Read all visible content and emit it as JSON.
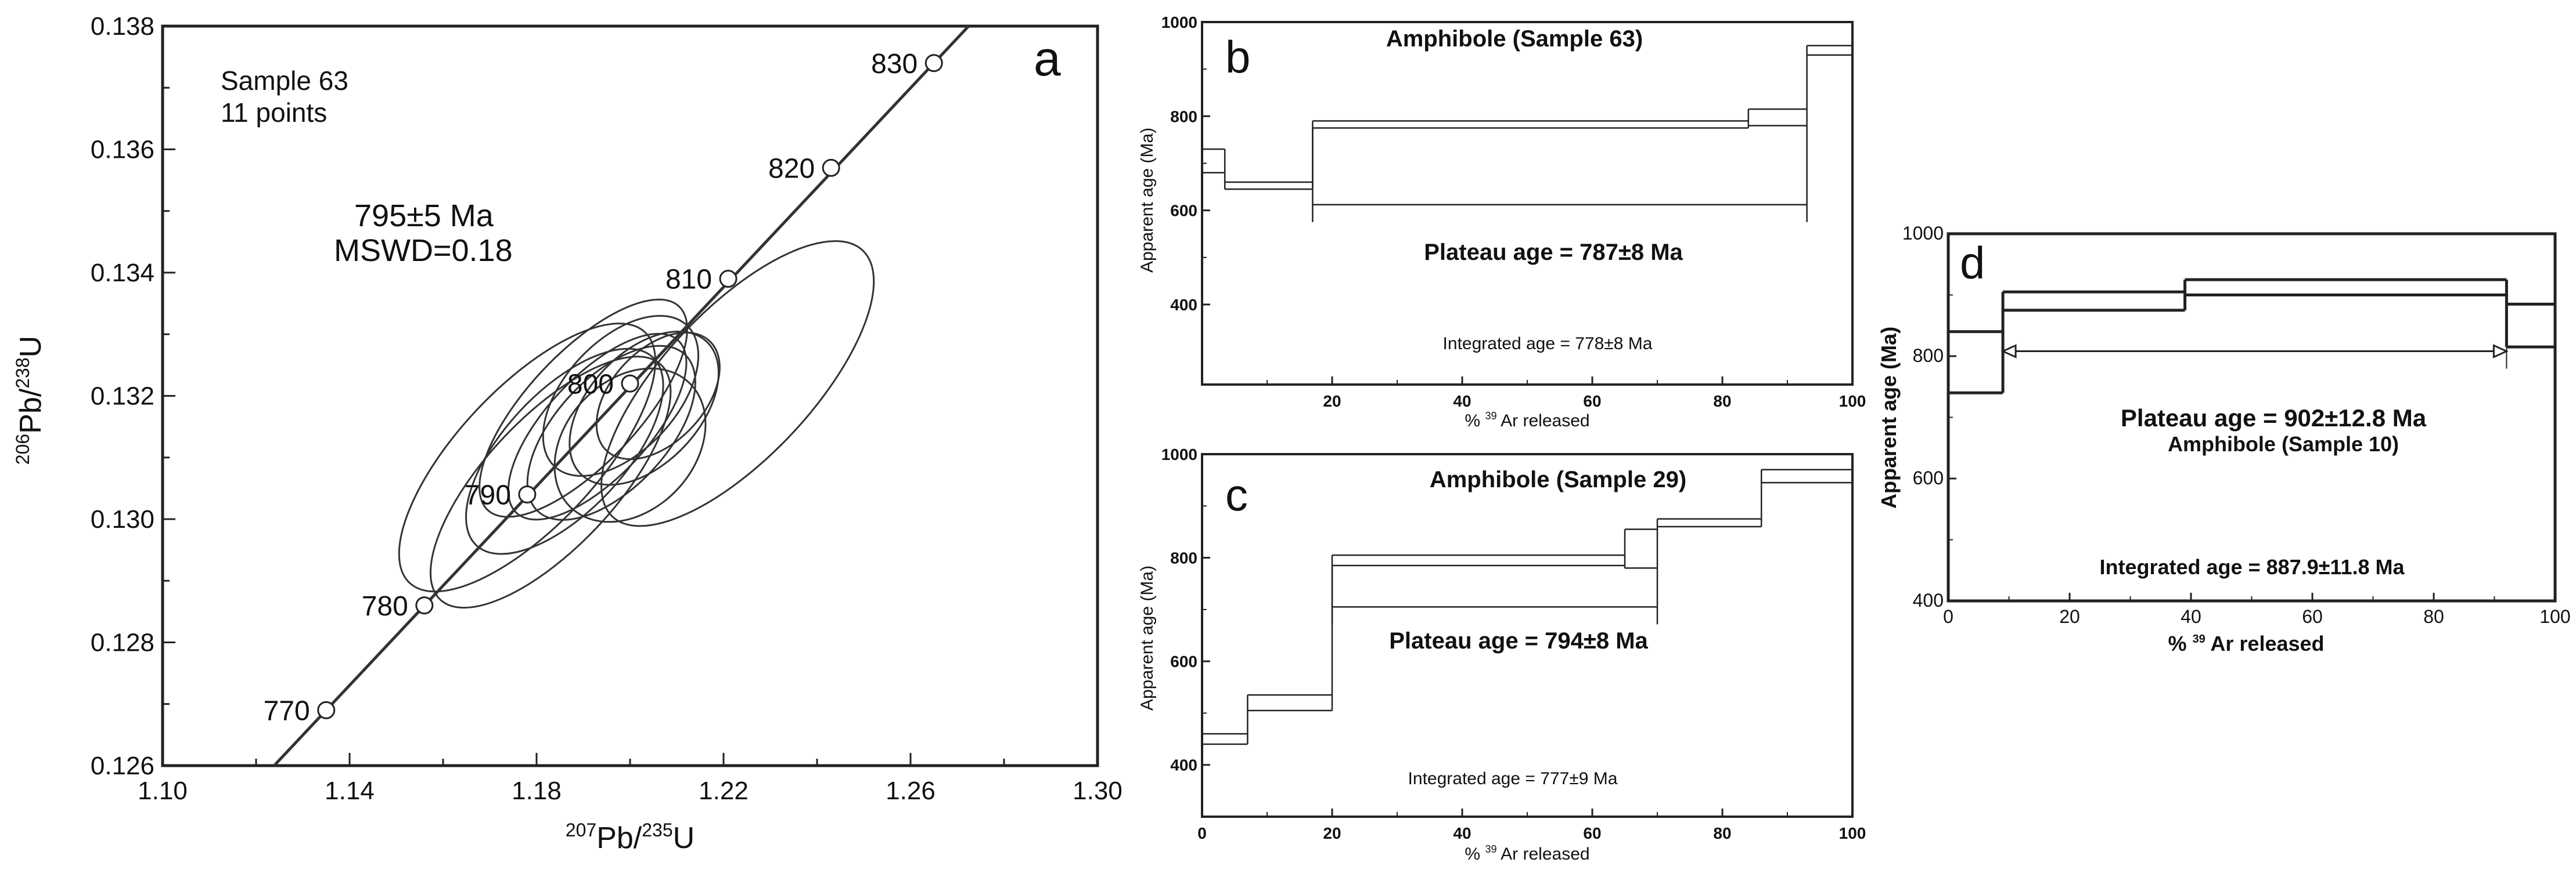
{
  "chart_data": [
    {
      "panel": "a",
      "type": "scatter",
      "subtype": "concordia",
      "xlabel_main": "Pb/",
      "xlabel_sup1": "207",
      "xlabel_sup2": "235",
      "xlabel_end": "U",
      "ylabel_main": "Pb/",
      "ylabel_sup1": "206",
      "ylabel_sup2": "238",
      "ylabel_end": "U",
      "xlim": [
        1.1,
        1.3
      ],
      "ylim": [
        0.126,
        0.138
      ],
      "xticks": [
        "1.10",
        "1.14",
        "1.18",
        "1.22",
        "1.26",
        "1.30"
      ],
      "yticks": [
        "0.126",
        "0.128",
        "0.130",
        "0.132",
        "0.134",
        "0.136",
        "0.138"
      ],
      "annotations": [
        "Sample 63",
        "11 points",
        "795±5 Ma",
        "MSWD=0.18"
      ],
      "concordia_points": [
        {
          "age": 770,
          "x": 1.135,
          "y": 0.1269
        },
        {
          "age": 780,
          "x": 1.156,
          "y": 0.1286
        },
        {
          "age": 790,
          "x": 1.178,
          "y": 0.1304
        },
        {
          "age": 800,
          "x": 1.2,
          "y": 0.1322
        },
        {
          "age": 810,
          "x": 1.221,
          "y": 0.1339
        },
        {
          "age": 820,
          "x": 1.243,
          "y": 0.1357
        },
        {
          "age": 830,
          "x": 1.265,
          "y": 0.1374
        }
      ],
      "concordia_labels": [
        "770",
        "780",
        "790",
        "800",
        "810",
        "820",
        "830"
      ],
      "ellipses": [
        {
          "cx": 1.178,
          "cy": 0.131,
          "rx": 0.032,
          "ry": 0.0015
        },
        {
          "cx": 1.183,
          "cy": 0.1306,
          "rx": 0.03,
          "ry": 0.0014
        },
        {
          "cx": 1.186,
          "cy": 0.1311,
          "rx": 0.024,
          "ry": 0.0013
        },
        {
          "cx": 1.19,
          "cy": 0.1318,
          "rx": 0.026,
          "ry": 0.0012
        },
        {
          "cx": 1.193,
          "cy": 0.1315,
          "rx": 0.022,
          "ry": 0.0011
        },
        {
          "cx": 1.196,
          "cy": 0.1314,
          "rx": 0.02,
          "ry": 0.0012
        },
        {
          "cx": 1.198,
          "cy": 0.132,
          "rx": 0.018,
          "ry": 0.0012
        },
        {
          "cx": 1.2,
          "cy": 0.1312,
          "rx": 0.016,
          "ry": 0.0014
        },
        {
          "cx": 1.203,
          "cy": 0.1318,
          "rx": 0.017,
          "ry": 0.0012
        },
        {
          "cx": 1.206,
          "cy": 0.132,
          "rx": 0.014,
          "ry": 0.001
        },
        {
          "cx": 1.223,
          "cy": 0.1322,
          "rx": 0.034,
          "ry": 0.0016
        }
      ]
    },
    {
      "panel": "b",
      "type": "step",
      "title": "Amphibole (Sample 63)",
      "xlabel": "% Ar released",
      "xlabel_sup": "39",
      "ylabel": "Apparent age (Ma)",
      "xlim": [
        0,
        100
      ],
      "ylim": [
        230,
        1000
      ],
      "xticks": [
        "20",
        "40",
        "60",
        "80",
        "100"
      ],
      "yticks": [
        "1000",
        "800",
        "600",
        "400"
      ],
      "steps": [
        {
          "x0": 0,
          "x1": 3.5,
          "lo": 680,
          "hi": 730
        },
        {
          "x0": 3.5,
          "x1": 17,
          "lo": 645,
          "hi": 660
        },
        {
          "x0": 17,
          "x1": 84,
          "lo": 775,
          "hi": 790
        },
        {
          "x0": 84,
          "x1": 93,
          "lo": 780,
          "hi": 815
        },
        {
          "x0": 93,
          "x1": 100,
          "lo": 930,
          "hi": 950
        }
      ],
      "plateau": {
        "x0": 17,
        "x1": 93,
        "age": 612
      },
      "plateau_label": "Plateau age = 787±8 Ma",
      "integrated_label": "Integrated age = 778±8 Ma"
    },
    {
      "panel": "c",
      "type": "step",
      "title": "Amphibole (Sample 29)",
      "xlabel": "% Ar released",
      "xlabel_sup": "39",
      "ylabel": "Apparent age (Ma)",
      "xlim": [
        0,
        100
      ],
      "ylim": [
        300,
        1000
      ],
      "xticks": [
        "0",
        "20",
        "40",
        "60",
        "80",
        "100"
      ],
      "yticks": [
        "1000",
        "800",
        "600",
        "400"
      ],
      "steps": [
        {
          "x0": 0,
          "x1": 7,
          "lo": 440,
          "hi": 460
        },
        {
          "x0": 7,
          "x1": 20,
          "lo": 505,
          "hi": 535
        },
        {
          "x0": 20,
          "x1": 65,
          "lo": 785,
          "hi": 805
        },
        {
          "x0": 65,
          "x1": 70,
          "lo": 780,
          "hi": 855
        },
        {
          "x0": 70,
          "x1": 86,
          "lo": 860,
          "hi": 875
        },
        {
          "x0": 86,
          "x1": 100,
          "lo": 945,
          "hi": 970
        }
      ],
      "plateau": {
        "x0": 20,
        "x1": 70,
        "age": 705
      },
      "plateau_label": "Plateau age = 794±8 Ma",
      "integrated_label": "Integrated age = 777±9 Ma"
    },
    {
      "panel": "d",
      "type": "step",
      "title": "Amphibole (Sample 10)",
      "xlabel": "% Ar released",
      "xlabel_sup": "39",
      "ylabel": "Apparent age (Ma)",
      "xlim": [
        0,
        100
      ],
      "ylim": [
        400,
        1000
      ],
      "xticks": [
        "0",
        "20",
        "40",
        "60",
        "80",
        "100"
      ],
      "yticks": [
        "1000",
        "800",
        "600",
        "400"
      ],
      "steps": [
        {
          "x0": 0,
          "x1": 9,
          "lo": 740,
          "hi": 840
        },
        {
          "x0": 9,
          "x1": 39,
          "lo": 875,
          "hi": 905
        },
        {
          "x0": 39,
          "x1": 92,
          "lo": 900,
          "hi": 925
        },
        {
          "x0": 92,
          "x1": 100,
          "lo": 815,
          "hi": 885
        }
      ],
      "plateau": {
        "x0": 9,
        "x1": 92,
        "age": 808
      },
      "plateau_label": "Plateau age = 902±12.8 Ma",
      "integrated_label": "Integrated age = 887.9±11.8 Ma"
    }
  ]
}
